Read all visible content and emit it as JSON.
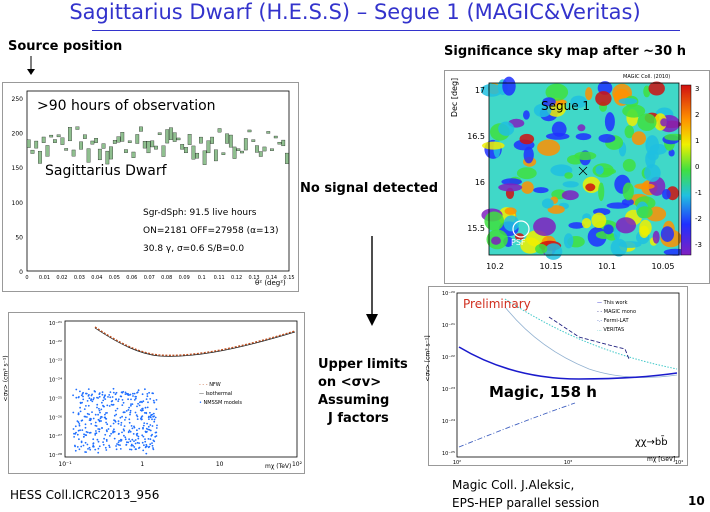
{
  "slide": {
    "title": "Sagittarius Dwarf (H.E.S.S) – Segue 1 (MAGIC&Veritas)",
    "page_number": "10"
  },
  "left": {
    "source_position_label": "Source position",
    "hist_overlay": ">90 hours of observation",
    "hist_target": "Sagittarius Dwarf",
    "hist_stats_1": "Sgr-dSph: 91.5 live hours",
    "hist_stats_2": "ON=2181 OFF=27958 (α=13)",
    "hist_stats_3": "30.8 γ, σ=0.6 S/B=0.0",
    "hist_xlabel": "θ² (deg²)",
    "hist_yticks": [
      "250",
      "200",
      "150",
      "100",
      "50",
      "0"
    ],
    "hist_xticks": [
      "0",
      "0.01",
      "0.02",
      "0.03",
      "0.04",
      "0.05",
      "0.06",
      "0.07",
      "0.08",
      "0.09",
      "0.1",
      "0.11",
      "0.12",
      "0.13",
      "0.14",
      "0.15"
    ],
    "limit_xlabel": "mχ (TeV)",
    "limit_ylabel": "<σv> (cm³ s⁻¹)",
    "limit_legend": [
      "NFW",
      "Isothermal",
      "NMSSM models"
    ],
    "limit_xticks": [
      "10⁻¹",
      "1",
      "10",
      "10²"
    ],
    "limit_yticks": [
      "10⁻²¹",
      "10⁻²²",
      "10⁻²³",
      "10⁻²⁴",
      "10⁻²⁵",
      "10⁻²⁶",
      "10⁻²⁷",
      "10⁻²⁸"
    ],
    "credit": "HESS Coll.ICRC2013_956"
  },
  "middle": {
    "no_signal": "No signal  detected",
    "upper_limits_1": "Upper limits",
    "upper_limits_2": "on   <σv>",
    "upper_limits_3": "Assuming",
    "upper_limits_4": "J factors"
  },
  "right": {
    "skymap_label": "Significance sky map after ~30 h",
    "skymap_header": "MAGIC Coll. (2010)",
    "skymap_target": "Segue 1",
    "skymap_psf": "PSF",
    "skymap_ylabel": "Dec [deg]",
    "skymap_yticks": [
      "17",
      "16.5",
      "16",
      "15.5"
    ],
    "skymap_xticks": [
      "10.2",
      "10.15",
      "10.1",
      "10.05"
    ],
    "colorbar_ticks": [
      "3",
      "2",
      "1",
      "0",
      "-1",
      "-2",
      "-3"
    ],
    "magic_preliminary": "Preliminary",
    "magic_overlay": "Magic, 158 h",
    "magic_legend": [
      "This work",
      "MAGIC mono",
      "Fermi-LAT",
      "VERITAS"
    ],
    "magic_channel": "χχ→bb̄",
    "magic_ylabel": "<σv> [cm³ s⁻¹]",
    "magic_xlabel": "mχ [GeV]",
    "magic_xticks": [
      "10²",
      "10³",
      "10⁴"
    ],
    "magic_yticks": [
      "10⁻²⁰",
      "10⁻²¹",
      "10⁻²²",
      "10⁻²³",
      "10⁻²⁴",
      "10⁻²⁵"
    ],
    "credit_1": "Magic Coll. J.Aleksic,",
    "credit_2": "EPS-HEP parallel session"
  },
  "colors": {
    "title": "#3333cc",
    "hist_bar": "#8fbf8f",
    "this_work": "#1a1acc",
    "magic_mono": "#202080",
    "veritas": "#40c8c8",
    "nmssm": "#1f6fff"
  }
}
